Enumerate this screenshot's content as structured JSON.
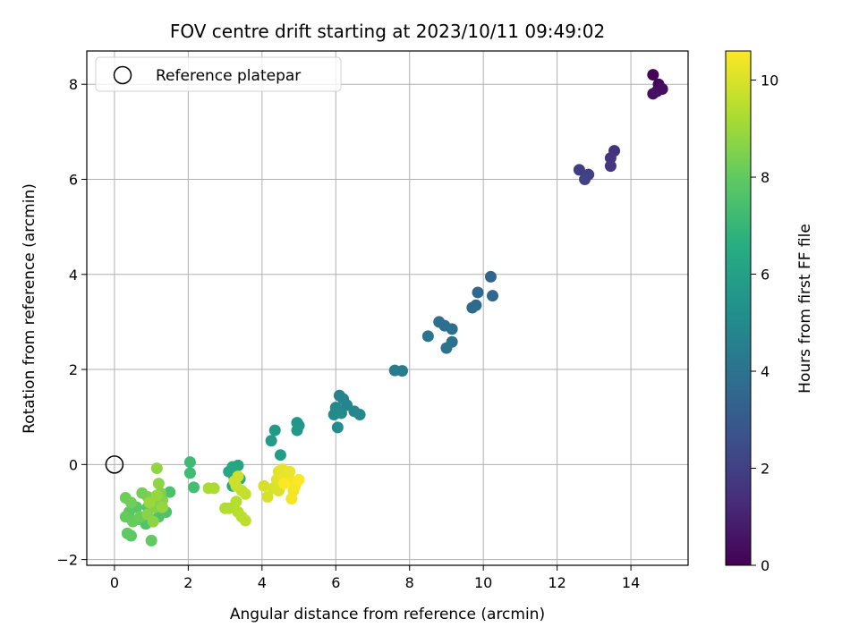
{
  "chart_data": {
    "type": "scatter",
    "title": "FOV centre drift starting at 2023/10/11 09:49:02",
    "xlabel": "Angular distance from reference (arcmin)",
    "ylabel": "Rotation from reference (arcmin)",
    "xlim": [
      -0.75,
      15.55
    ],
    "ylim": [
      -2.12,
      8.7
    ],
    "xticks": [
      0,
      2,
      4,
      6,
      8,
      10,
      12,
      14
    ],
    "yticks": [
      -2,
      0,
      2,
      4,
      6,
      8
    ],
    "grid": true,
    "legend": {
      "position": "top-left",
      "entries": [
        "Reference platepar"
      ]
    },
    "reference_point": {
      "x": 0,
      "y": 0
    },
    "colorbar": {
      "label": "Hours from first FF file",
      "range": [
        0,
        10.6
      ],
      "ticks": [
        0,
        2,
        4,
        6,
        8,
        10
      ],
      "colormap": "viridis"
    },
    "points": [
      {
        "x": 14.6,
        "y": 8.2,
        "c": 0.1
      },
      {
        "x": 14.75,
        "y": 8.0,
        "c": 0.2
      },
      {
        "x": 14.7,
        "y": 7.85,
        "c": 0.3
      },
      {
        "x": 14.85,
        "y": 7.9,
        "c": 0.4
      },
      {
        "x": 14.6,
        "y": 7.8,
        "c": 0.5
      },
      {
        "x": 13.55,
        "y": 6.6,
        "c": 1.5
      },
      {
        "x": 13.45,
        "y": 6.45,
        "c": 1.6
      },
      {
        "x": 13.45,
        "y": 6.28,
        "c": 1.7
      },
      {
        "x": 12.6,
        "y": 6.2,
        "c": 1.9
      },
      {
        "x": 12.85,
        "y": 6.1,
        "c": 2.0
      },
      {
        "x": 12.75,
        "y": 6.0,
        "c": 2.1
      },
      {
        "x": 10.2,
        "y": 3.95,
        "c": 3.4
      },
      {
        "x": 10.25,
        "y": 3.55,
        "c": 3.5
      },
      {
        "x": 9.85,
        "y": 3.62,
        "c": 3.55
      },
      {
        "x": 9.8,
        "y": 3.35,
        "c": 3.6
      },
      {
        "x": 9.7,
        "y": 3.3,
        "c": 3.65
      },
      {
        "x": 8.8,
        "y": 3.0,
        "c": 3.8
      },
      {
        "x": 8.95,
        "y": 2.92,
        "c": 3.85
      },
      {
        "x": 9.15,
        "y": 2.85,
        "c": 3.9
      },
      {
        "x": 9.15,
        "y": 2.58,
        "c": 3.95
      },
      {
        "x": 9.0,
        "y": 2.45,
        "c": 4.0
      },
      {
        "x": 8.5,
        "y": 2.7,
        "c": 4.05
      },
      {
        "x": 7.6,
        "y": 1.98,
        "c": 4.4
      },
      {
        "x": 7.8,
        "y": 1.97,
        "c": 4.45
      },
      {
        "x": 6.1,
        "y": 1.45,
        "c": 4.7
      },
      {
        "x": 6.2,
        "y": 1.38,
        "c": 4.75
      },
      {
        "x": 6.3,
        "y": 1.25,
        "c": 4.8
      },
      {
        "x": 6.5,
        "y": 1.12,
        "c": 4.85
      },
      {
        "x": 6.65,
        "y": 1.05,
        "c": 4.9
      },
      {
        "x": 6.0,
        "y": 1.2,
        "c": 4.95
      },
      {
        "x": 5.95,
        "y": 1.05,
        "c": 5.0
      },
      {
        "x": 6.15,
        "y": 1.08,
        "c": 5.05
      },
      {
        "x": 6.05,
        "y": 0.78,
        "c": 5.1
      },
      {
        "x": 4.95,
        "y": 0.88,
        "c": 5.5
      },
      {
        "x": 5.0,
        "y": 0.82,
        "c": 5.55
      },
      {
        "x": 4.95,
        "y": 0.72,
        "c": 5.6
      },
      {
        "x": 4.35,
        "y": 0.72,
        "c": 5.7
      },
      {
        "x": 4.25,
        "y": 0.5,
        "c": 5.75
      },
      {
        "x": 4.5,
        "y": 0.2,
        "c": 5.85
      },
      {
        "x": 3.35,
        "y": -0.02,
        "c": 6.2
      },
      {
        "x": 3.2,
        "y": -0.05,
        "c": 6.25
      },
      {
        "x": 3.1,
        "y": -0.15,
        "c": 6.3
      },
      {
        "x": 3.25,
        "y": -0.28,
        "c": 6.35
      },
      {
        "x": 3.4,
        "y": -0.3,
        "c": 6.4
      },
      {
        "x": 3.2,
        "y": -0.45,
        "c": 6.45
      },
      {
        "x": 2.05,
        "y": 0.05,
        "c": 7.2
      },
      {
        "x": 2.05,
        "y": -0.18,
        "c": 7.25
      },
      {
        "x": 2.15,
        "y": -0.48,
        "c": 7.3
      },
      {
        "x": 1.5,
        "y": -0.58,
        "c": 7.5
      },
      {
        "x": 1.4,
        "y": -1.0,
        "c": 7.55
      },
      {
        "x": 1.2,
        "y": -1.1,
        "c": 7.6
      },
      {
        "x": 0.85,
        "y": -1.25,
        "c": 7.65
      },
      {
        "x": 0.65,
        "y": -1.15,
        "c": 7.7
      },
      {
        "x": 0.9,
        "y": -0.9,
        "c": 7.75
      },
      {
        "x": 0.6,
        "y": -0.9,
        "c": 7.8
      },
      {
        "x": 0.4,
        "y": -1.0,
        "c": 7.85
      },
      {
        "x": 0.45,
        "y": -1.5,
        "c": 7.9
      },
      {
        "x": 0.35,
        "y": -1.45,
        "c": 7.95
      },
      {
        "x": 1.0,
        "y": -1.6,
        "c": 8.0
      },
      {
        "x": 0.3,
        "y": -1.1,
        "c": 8.05
      },
      {
        "x": 0.5,
        "y": -1.2,
        "c": 8.1
      },
      {
        "x": 0.7,
        "y": -1.1,
        "c": 8.15
      },
      {
        "x": 0.3,
        "y": -0.7,
        "c": 8.2
      },
      {
        "x": 0.45,
        "y": -0.8,
        "c": 8.25
      },
      {
        "x": 0.75,
        "y": -0.6,
        "c": 8.3
      },
      {
        "x": 0.9,
        "y": -0.68,
        "c": 8.35
      },
      {
        "x": 1.0,
        "y": -0.72,
        "c": 8.4
      },
      {
        "x": 1.1,
        "y": -0.78,
        "c": 8.45
      },
      {
        "x": 1.25,
        "y": -0.6,
        "c": 8.5
      },
      {
        "x": 1.3,
        "y": -0.75,
        "c": 8.55
      },
      {
        "x": 1.1,
        "y": -0.9,
        "c": 8.6
      },
      {
        "x": 0.9,
        "y": -1.05,
        "c": 8.65
      },
      {
        "x": 1.05,
        "y": -1.2,
        "c": 8.7
      },
      {
        "x": 1.2,
        "y": -0.4,
        "c": 8.75
      },
      {
        "x": 1.15,
        "y": -0.08,
        "c": 8.8
      },
      {
        "x": 1.3,
        "y": -0.9,
        "c": 8.85
      },
      {
        "x": 1.15,
        "y": -0.65,
        "c": 8.9
      },
      {
        "x": 0.95,
        "y": -0.8,
        "c": 8.95
      },
      {
        "x": 2.55,
        "y": -0.5,
        "c": 9.2
      },
      {
        "x": 2.7,
        "y": -0.5,
        "c": 9.25
      },
      {
        "x": 3.0,
        "y": -0.92,
        "c": 9.3
      },
      {
        "x": 3.1,
        "y": -0.92,
        "c": 9.35
      },
      {
        "x": 3.3,
        "y": -0.78,
        "c": 9.4
      },
      {
        "x": 3.35,
        "y": -1.0,
        "c": 9.45
      },
      {
        "x": 3.45,
        "y": -1.1,
        "c": 9.5
      },
      {
        "x": 3.55,
        "y": -1.18,
        "c": 9.55
      },
      {
        "x": 3.45,
        "y": -0.55,
        "c": 9.6
      },
      {
        "x": 3.55,
        "y": -0.62,
        "c": 9.65
      },
      {
        "x": 3.3,
        "y": -0.45,
        "c": 9.7
      },
      {
        "x": 3.25,
        "y": -0.35,
        "c": 9.75
      },
      {
        "x": 3.35,
        "y": -0.25,
        "c": 9.8
      },
      {
        "x": 4.05,
        "y": -0.45,
        "c": 9.9
      },
      {
        "x": 4.15,
        "y": -0.68,
        "c": 9.95
      },
      {
        "x": 4.3,
        "y": -0.5,
        "c": 10.0
      },
      {
        "x": 4.45,
        "y": -0.55,
        "c": 10.05
      },
      {
        "x": 4.4,
        "y": -0.32,
        "c": 10.1
      },
      {
        "x": 4.45,
        "y": -0.15,
        "c": 10.15
      },
      {
        "x": 4.55,
        "y": -0.1,
        "c": 10.2
      },
      {
        "x": 4.6,
        "y": -0.28,
        "c": 10.25
      },
      {
        "x": 4.75,
        "y": -0.15,
        "c": 10.3
      },
      {
        "x": 4.8,
        "y": -0.35,
        "c": 10.35
      },
      {
        "x": 4.85,
        "y": -0.55,
        "c": 10.4
      },
      {
        "x": 4.8,
        "y": -0.72,
        "c": 10.45
      },
      {
        "x": 4.9,
        "y": -0.45,
        "c": 10.5
      },
      {
        "x": 5.0,
        "y": -0.32,
        "c": 10.55
      },
      {
        "x": 4.6,
        "y": -0.4,
        "c": 10.6
      }
    ]
  }
}
